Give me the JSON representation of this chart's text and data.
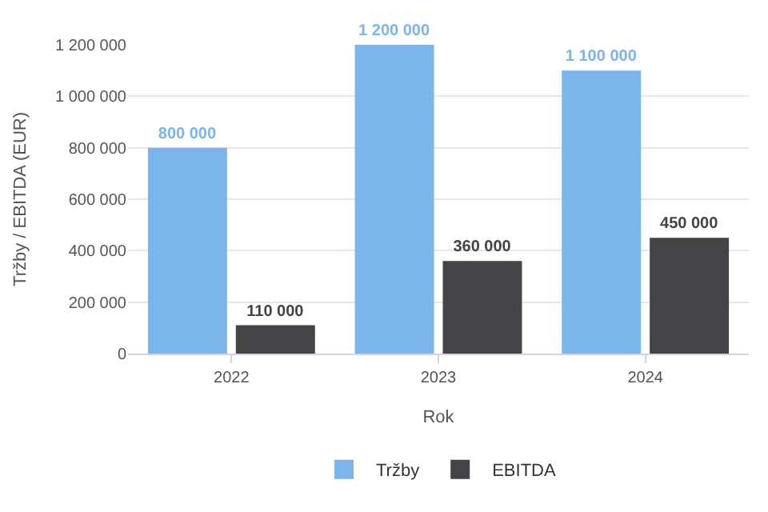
{
  "chart_data": {
    "type": "bar",
    "xlabel": "Rok",
    "ylabel": "Tržby / EBITDA (EUR)",
    "categories": [
      "2022",
      "2023",
      "2024"
    ],
    "series": [
      {
        "name": "Tržby",
        "color": "#7cb5ec",
        "values": [
          800000,
          1200000,
          1100000
        ],
        "value_labels": [
          "800 000",
          "1 200 000",
          "1 100 000"
        ]
      },
      {
        "name": "EBITDA",
        "color": "#434348",
        "values": [
          110000,
          360000,
          450000
        ],
        "value_labels": [
          "110 000",
          "360 000",
          "450 000"
        ]
      }
    ],
    "ylim": [
      0,
      1200000
    ],
    "yticks": [
      0,
      {
        "value": 200000,
        "label": "200 000"
      },
      {
        "value": 400000,
        "label": "400 000"
      },
      {
        "value": 600000,
        "label": "600 000"
      },
      {
        "value": 800000,
        "label": "800 000"
      },
      {
        "value": 1000000,
        "label": "1 000 000"
      },
      {
        "value": 1200000,
        "label": "1 200 000"
      }
    ],
    "grid": "y",
    "legend": "bottom"
  }
}
